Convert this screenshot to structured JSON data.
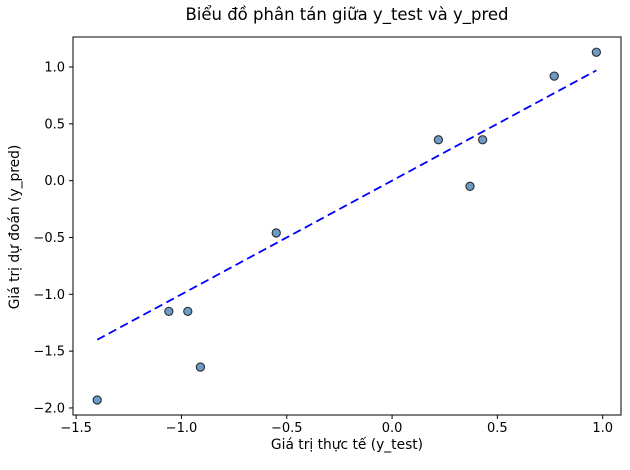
{
  "figure": {
    "background": "#ffffff"
  },
  "chart_data": {
    "type": "scatter",
    "title": "Biểu đồ phân tán giữa y_test và y_pred",
    "xlabel": "Giá trị thực tế (y_test)",
    "ylabel": "Giá trị dự đoán (y_pred)",
    "xlim": [
      -1.515,
      1.087
    ],
    "ylim": [
      -2.062,
      1.264
    ],
    "xticks": {
      "values": [
        -1.5,
        -1.0,
        -0.5,
        0.0,
        0.5,
        1.0
      ],
      "labels": [
        "−1.5",
        "−1.0",
        "−0.5",
        "0.0",
        "0.5",
        "1.0"
      ]
    },
    "yticks": {
      "values": [
        1.0,
        0.5,
        0.0,
        -0.5,
        -1.0,
        -1.5,
        -2.0
      ],
      "labels": [
        "1.0",
        "0.5",
        "0.0",
        "−0.5",
        "−1.0",
        "−1.5",
        "−2.0"
      ]
    },
    "grid": false,
    "legend": null,
    "axis_color": "#000000",
    "series": [
      {
        "name": "prediction-points",
        "type": "scatter",
        "marker": "circle",
        "marker_color": "#6a9bc9",
        "marker_edge_color": "#2b2b2b",
        "points": [
          [
            -1.4,
            -1.93
          ],
          [
            -1.06,
            -1.15
          ],
          [
            -0.97,
            -1.15
          ],
          [
            -0.91,
            -1.64
          ],
          [
            -0.55,
            -0.46
          ],
          [
            0.22,
            0.36
          ],
          [
            0.37,
            -0.05
          ],
          [
            0.43,
            0.36
          ],
          [
            0.77,
            0.92
          ],
          [
            0.97,
            1.13
          ]
        ]
      },
      {
        "name": "identity-line",
        "type": "line",
        "line_style": "dashed",
        "color": "#0000ff",
        "points": [
          [
            -1.4,
            -1.4
          ],
          [
            0.97,
            0.97
          ]
        ]
      }
    ]
  }
}
